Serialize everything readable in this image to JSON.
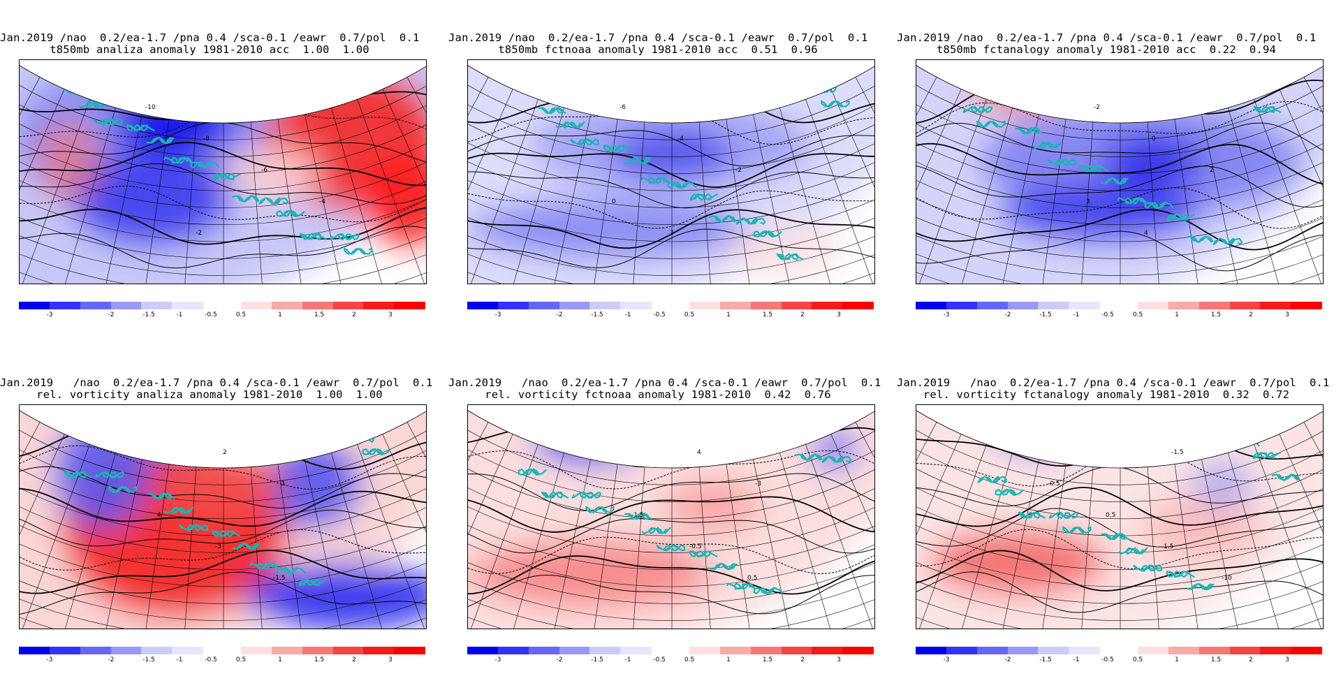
{
  "panels": [
    {
      "line1": "Jan.2019 /nao  0.2/ea-1.7 /pna 0.4 /sca-0.1 /eawr  0.7/pol  0.1",
      "line2": "t850mb analiza anomaly 1981-2010 acc  1.00  1.00",
      "field": "t850",
      "variant": "analysis"
    },
    {
      "line1": "Jan.2019 /nao  0.2/ea-1.7 /pna 0.4 /sca-0.1 /eawr  0.7/pol  0.1",
      "line2": "t850mb fctnoaa anomaly 1981-2010 acc  0.51  0.96",
      "field": "t850",
      "variant": "noaa"
    },
    {
      "line1": "Jan.2019 /nao  0.2/ea-1.7 /pna 0.4 /sca-0.1 /eawr  0.7/pol  0.1",
      "line2": "t850mb fctanalogy anomaly 1981-2010 acc  0.22  0.94",
      "field": "t850",
      "variant": "analogy"
    },
    {
      "line1": "Jan.2019   /nao  0.2/ea-1.7 /pna 0.4 /sca-0.1 /eawr  0.7/pol  0.1",
      "line2": "rel. vorticity analiza anomaly 1981-2010  1.00  1.00",
      "field": "vort",
      "variant": "analysis"
    },
    {
      "line1": "Jan.2019   /nao  0.2/ea-1.7 /pna 0.4 /sca-0.1 /eawr  0.7/pol  0.1",
      "line2": "rel. vorticity fctnoaa anomaly 1981-2010  0.42  0.76",
      "field": "vort",
      "variant": "noaa"
    },
    {
      "line1": "Jan.2019   /nao  0.2/ea-1.7 /pna 0.4 /sca-0.1 /eawr  0.7/pol  0.1",
      "line2": "rel. vorticity fctanalogy anomaly 1981-2010  0.32  0.72",
      "field": "vort",
      "variant": "analogy"
    }
  ],
  "colorbar": {
    "labels": [
      "-3",
      "-2",
      "-1.5",
      "-1",
      "-0.5",
      "0.5",
      "1",
      "1.5",
      "2",
      "3"
    ],
    "colors_neg": [
      "#0000f0",
      "#3333f5",
      "#6666f5",
      "#9999f7",
      "#ccccfa",
      "#e6e6fc"
    ],
    "colors_pos": [
      "#fce0e0",
      "#faaaaa",
      "#f77777",
      "#f54444",
      "#f51a1a",
      "#ff0000"
    ]
  },
  "contour_labels": [
    "-10",
    "-8",
    "-6",
    "-4",
    "-2",
    "0",
    "2",
    "3",
    "4",
    "-3",
    "-1.5",
    "-0.5",
    "0.5",
    "1.5"
  ]
}
